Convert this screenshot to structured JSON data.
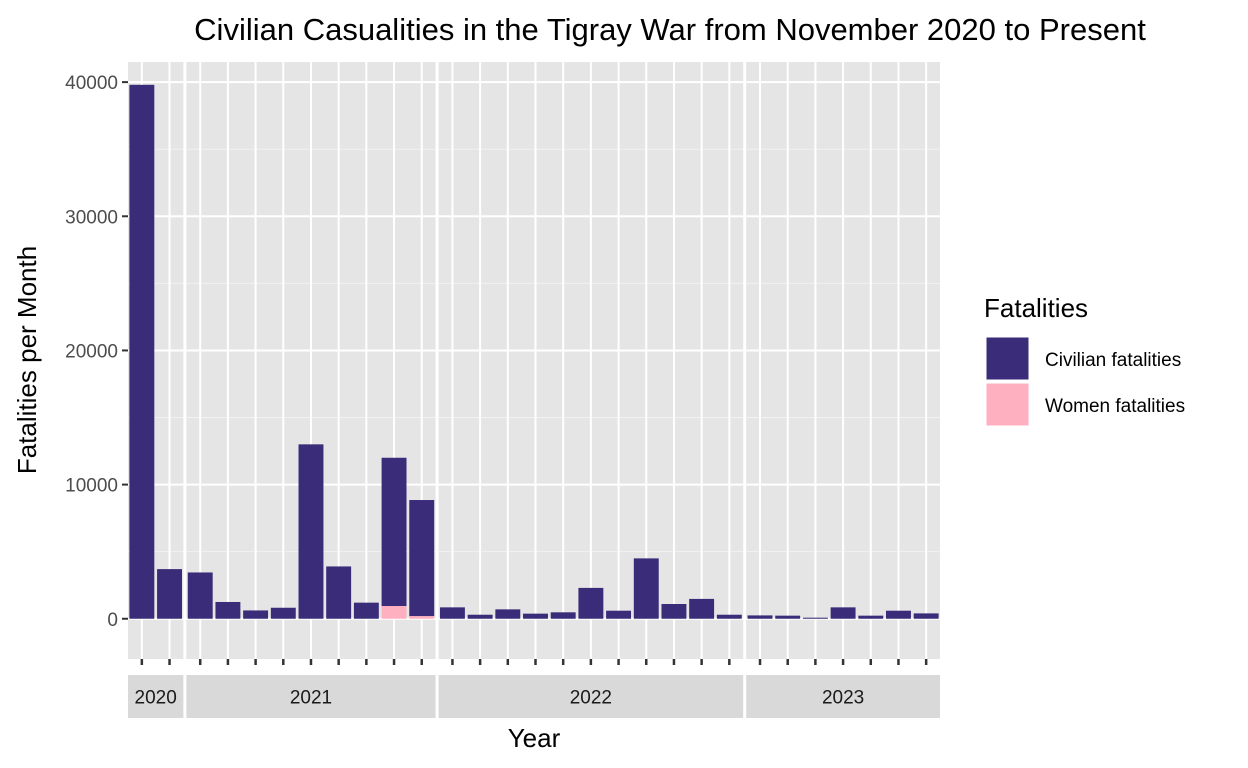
{
  "chart_data": {
    "type": "bar",
    "stacked": true,
    "title": "Civilian Casualities in the Tigray War from November 2020 to Present",
    "xlabel": "Year",
    "ylabel": "Fatalities per Month",
    "ylim": [
      -3000,
      41500
    ],
    "yticks": [
      0,
      10000,
      20000,
      30000,
      40000
    ],
    "grid": true,
    "legend": {
      "title": "Fatalities",
      "position": "right"
    },
    "facets": [
      {
        "label": "2020",
        "months": [
          11,
          12
        ]
      },
      {
        "label": "2021",
        "months": [
          1,
          2,
          3,
          4,
          5,
          6,
          7,
          8,
          9
        ]
      },
      {
        "label": "2022",
        "months": [
          1,
          2,
          3,
          4,
          5,
          6,
          7,
          8,
          9,
          10,
          11
        ]
      },
      {
        "label": "2023",
        "months": [
          1,
          2,
          3,
          4,
          5,
          6,
          7
        ]
      }
    ],
    "series": [
      {
        "name": "Civilian fatalities",
        "color": "#3a2c79",
        "values": [
          [
            39800,
            3700
          ],
          [
            3450,
            1250,
            620,
            820,
            13000,
            3900,
            1200,
            11050,
            8650
          ],
          [
            850,
            300,
            700,
            380,
            480,
            2300,
            600,
            4500,
            1100,
            1480,
            300
          ],
          [
            250,
            230,
            80,
            850,
            230,
            600,
            400
          ]
        ]
      },
      {
        "name": "Women fatalities",
        "color": "#ffb0c0",
        "values": [
          [
            0,
            0
          ],
          [
            0,
            0,
            0,
            0,
            0,
            0,
            0,
            950,
            200
          ],
          [
            0,
            0,
            0,
            0,
            0,
            0,
            0,
            0,
            0,
            0,
            0
          ],
          [
            0,
            0,
            0,
            0,
            0,
            0,
            0
          ]
        ]
      }
    ]
  }
}
